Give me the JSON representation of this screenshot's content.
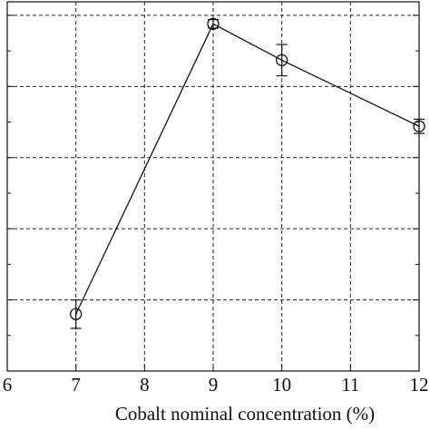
{
  "chart_data": {
    "type": "line",
    "xlabel": "Cobalt nominal concentration (%)",
    "x": [
      7,
      9,
      10,
      12
    ],
    "series": [
      {
        "color": "#111111",
        "values": [
          0.8,
          4.88,
          4.37,
          3.44
        ],
        "errors": [
          0.2,
          0.06,
          0.22,
          0.1
        ]
      }
    ],
    "xlim": [
      6,
      12
    ],
    "xticks": [
      6,
      7,
      8,
      9,
      10,
      11,
      12
    ],
    "ylim": [
      0,
      5.19
    ],
    "yticks": [
      0,
      1,
      2,
      3,
      4,
      5
    ],
    "grid": true
  }
}
